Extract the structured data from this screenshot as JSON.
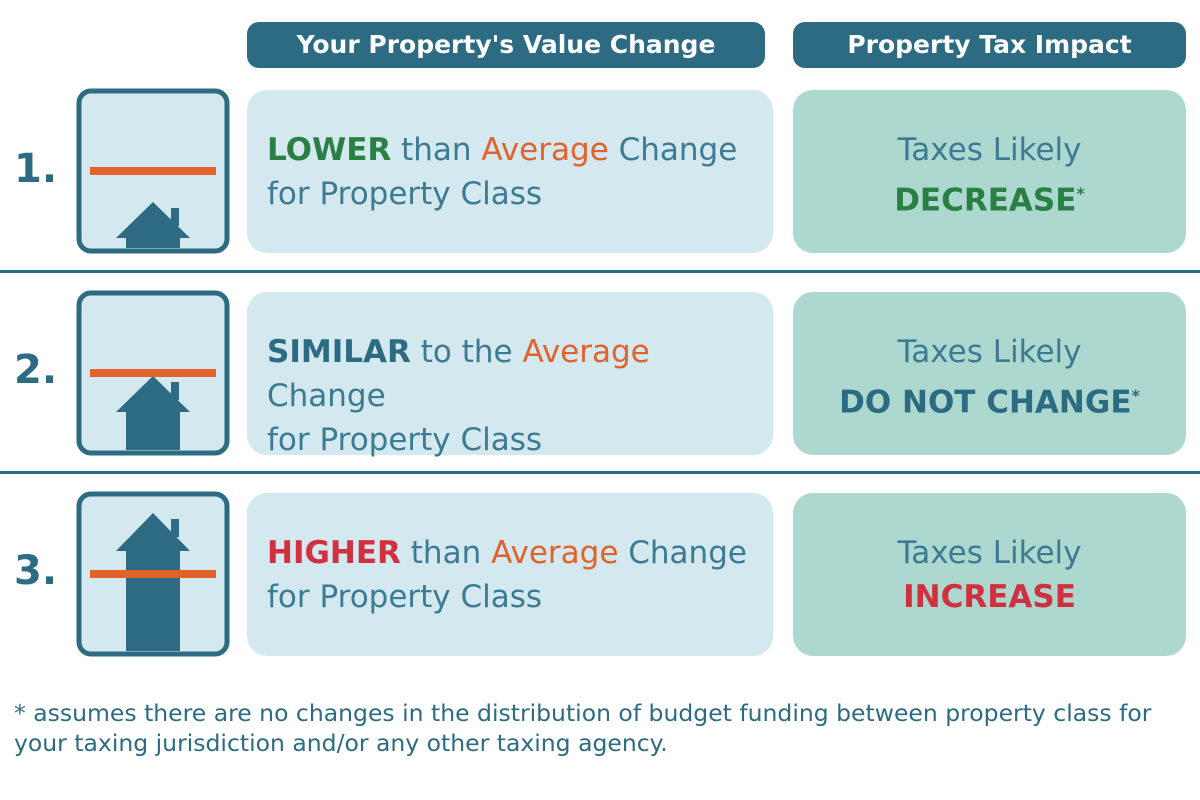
{
  "headers": [
    "Your Property's Value Change",
    "Property Tax Impact"
  ],
  "rows": [
    {
      "number": "1.",
      "change": [
        "LOWER",
        "than",
        "Average",
        "Change",
        "for Property Class"
      ],
      "impact": [
        "Taxes Likely",
        "DECREASE",
        "*"
      ]
    },
    {
      "number": "2.",
      "change": [
        "SIMILAR",
        "to the",
        "Average",
        "Change",
        "for Property Class"
      ],
      "impact": [
        "Taxes Likely",
        "DO NOT CHANGE",
        "*"
      ]
    },
    {
      "number": "3.",
      "change": [
        "HIGHER",
        "than",
        "Average",
        "Change",
        "for Property Class"
      ],
      "impact": [
        "Taxes Likely",
        "INCREASE"
      ]
    }
  ],
  "footnote": "* assumes there are no changes in the distribution of budget funding between property class for your taxing jurisdiction and/or any other taxing agency."
}
